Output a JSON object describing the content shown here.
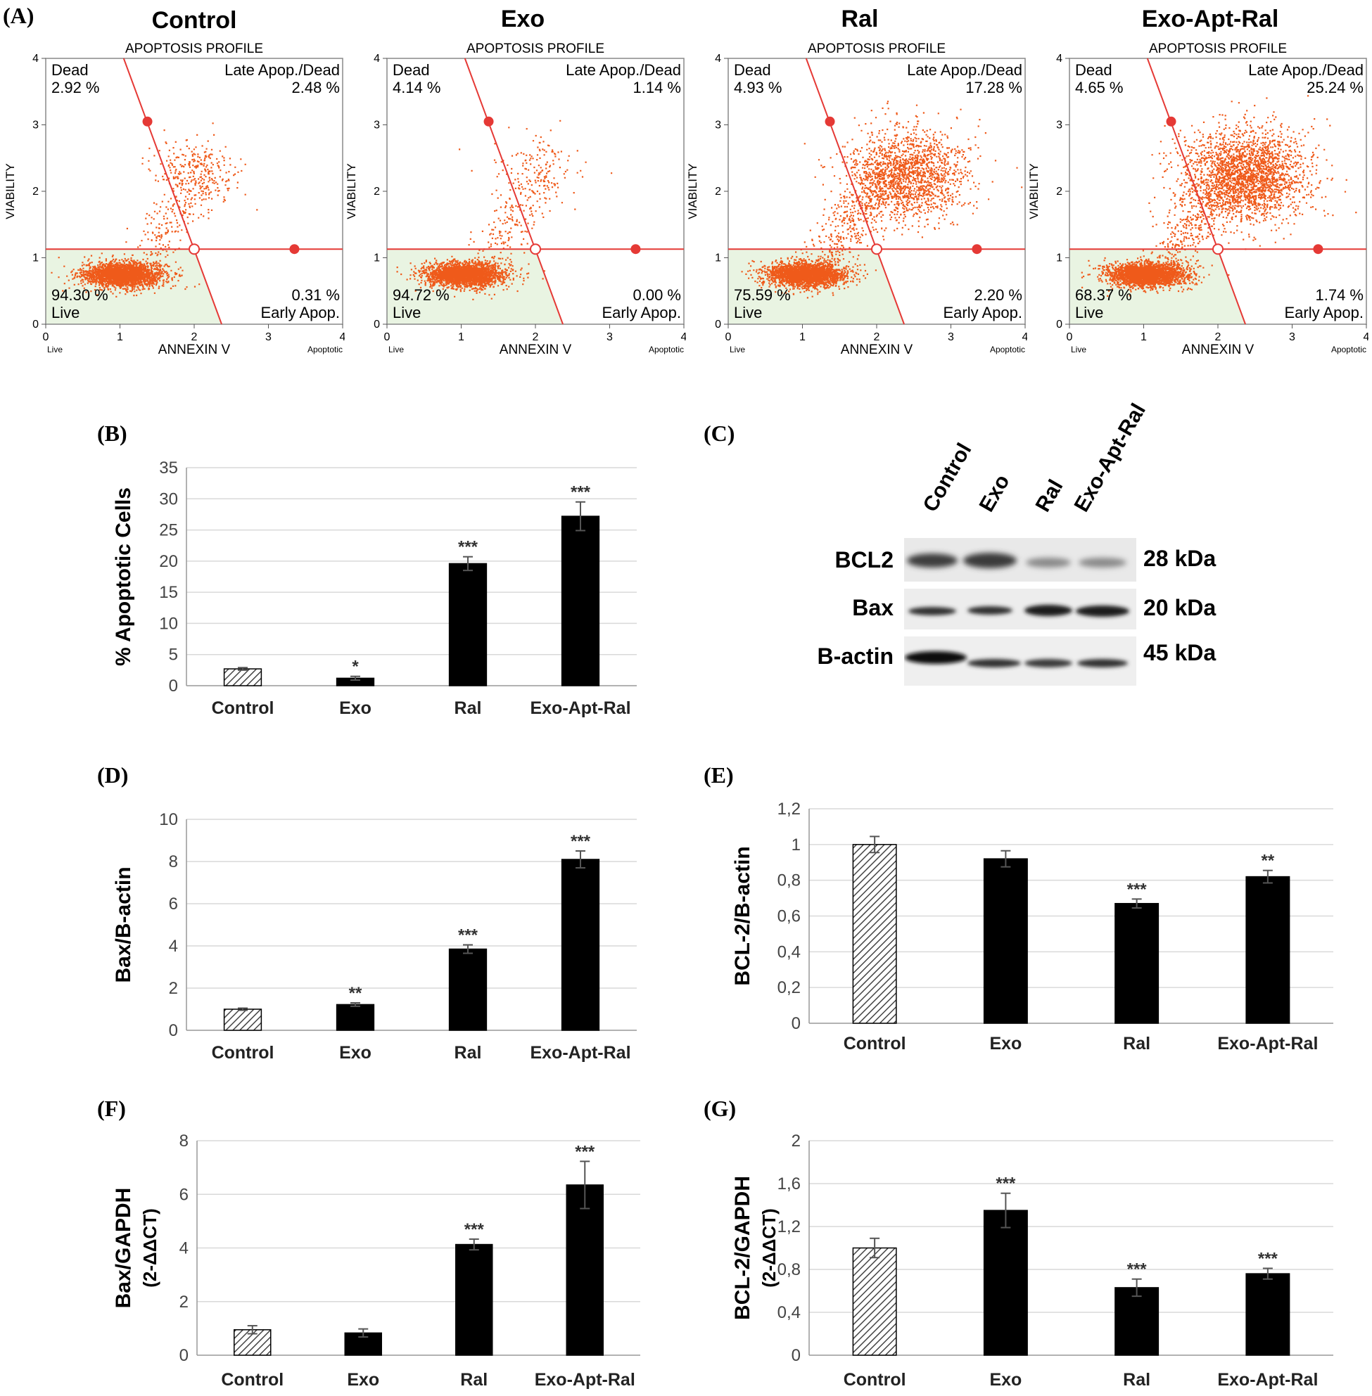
{
  "panel_letters": {
    "A": "(A)",
    "B": "(B)",
    "C": "(C)",
    "D": "(D)",
    "E": "(E)",
    "F": "(F)",
    "G": "(G)"
  },
  "colors": {
    "dots": "#ef5a1a",
    "gate": "#e53935",
    "live_fill": "#e9f4e2",
    "bar_black": "#000000",
    "grid": "#d9d9d9"
  },
  "flow": {
    "subtitle": "APOPTOSIS PROFILE",
    "x_axis_label": "ANNEXIN V",
    "y_axis_label": "VIABILITY",
    "x_low_label": "Live",
    "x_high_label": "Apoptotic",
    "ticks": [
      "0",
      "1",
      "2",
      "3",
      "4"
    ],
    "quad_names": {
      "dead": "Dead",
      "late": "Late Apop./Dead",
      "live": "Live",
      "early": "Early Apop."
    },
    "panels": [
      {
        "title": "Control",
        "dead": "2.92 %",
        "late": "2.48 %",
        "live": "94.30 %",
        "early": "0.31 %"
      },
      {
        "title": "Exo",
        "dead": "4.14 %",
        "late": "1.14 %",
        "live": "94.72 %",
        "early": "0.00 %"
      },
      {
        "title": "Ral",
        "dead": "4.93 %",
        "late": "17.28 %",
        "live": "75.59 %",
        "early": "2.20 %"
      },
      {
        "title": "Exo-Apt-Ral",
        "dead": "4.65 %",
        "late": "25.24 %",
        "live": "68.37 %",
        "early": "1.74 %"
      }
    ]
  },
  "blot": {
    "lanes": [
      "Control",
      "Exo",
      "Ral",
      "Exo-Apt-Ral"
    ],
    "rows": [
      {
        "protein": "BCL2",
        "kda": "28 kDa"
      },
      {
        "protein": "Bax",
        "kda": "20 kDa"
      },
      {
        "protein": "B-actin",
        "kda": "45 kDa"
      }
    ]
  },
  "chart_data": [
    {
      "panel": "B",
      "type": "bar",
      "ylabel": "% Apoptotic Cells",
      "categories": [
        "Control",
        "Exo",
        "Ral",
        "Exo-Apt-Ral"
      ],
      "values": [
        2.7,
        1.2,
        19.6,
        27.2
      ],
      "errors": [
        0.2,
        0.3,
        1.1,
        2.3
      ],
      "sig": [
        "",
        "*",
        "***",
        "***"
      ],
      "ylim": [
        0,
        35
      ],
      "ticks": [
        0,
        5,
        10,
        15,
        20,
        25,
        30,
        35
      ],
      "tick_labels": [
        "0",
        "5",
        "10",
        "15",
        "20",
        "25",
        "30",
        "35"
      ]
    },
    {
      "panel": "D",
      "type": "bar",
      "ylabel": "Bax/B-actin",
      "categories": [
        "Control",
        "Exo",
        "Ral",
        "Exo-Apt-Ral"
      ],
      "values": [
        1.0,
        1.22,
        3.85,
        8.1
      ],
      "errors": [
        0.05,
        0.08,
        0.2,
        0.4
      ],
      "sig": [
        "",
        "**",
        "***",
        "***"
      ],
      "ylim": [
        0,
        10
      ],
      "ticks": [
        0,
        2,
        4,
        6,
        8,
        10
      ],
      "tick_labels": [
        "0",
        "2",
        "4",
        "6",
        "8",
        "10"
      ]
    },
    {
      "panel": "E",
      "type": "bar",
      "ylabel": "BCL-2/B-actin",
      "categories": [
        "Control",
        "Exo",
        "Ral",
        "Exo-Apt-Ral"
      ],
      "values": [
        1.0,
        0.92,
        0.67,
        0.82
      ],
      "errors": [
        0.045,
        0.045,
        0.025,
        0.035
      ],
      "sig": [
        "",
        "",
        "***",
        "**"
      ],
      "ylim": [
        0,
        1.2
      ],
      "ticks": [
        0,
        0.2,
        0.4,
        0.6,
        0.8,
        1,
        1.2
      ],
      "tick_labels": [
        "0",
        "0,2",
        "0,4",
        "0,6",
        "0,8",
        "1",
        "1,2"
      ]
    },
    {
      "panel": "F",
      "type": "bar",
      "ylabel": "Bax/GAPDH",
      "ylabel2": "(2-ΔΔCT)",
      "categories": [
        "Control",
        "Exo",
        "Ral",
        "Exo-Apt-Ral"
      ],
      "values": [
        0.95,
        0.83,
        4.13,
        6.35
      ],
      "errors": [
        0.15,
        0.15,
        0.2,
        0.88
      ],
      "sig": [
        "",
        "",
        "***",
        "***"
      ],
      "ylim": [
        0,
        8
      ],
      "ticks": [
        0,
        2,
        4,
        6,
        8
      ],
      "tick_labels": [
        "0",
        "2",
        "4",
        "6",
        "8"
      ]
    },
    {
      "panel": "G",
      "type": "bar",
      "ylabel": "BCL-2/GAPDH",
      "ylabel2": "(2-ΔΔCT)",
      "categories": [
        "Control",
        "Exo",
        "Ral",
        "Exo-Apt-Ral"
      ],
      "values": [
        1.0,
        1.35,
        0.63,
        0.76
      ],
      "errors": [
        0.09,
        0.16,
        0.08,
        0.05
      ],
      "sig": [
        "",
        "***",
        "***",
        "***"
      ],
      "ylim": [
        0,
        2
      ],
      "ticks": [
        0,
        0.4,
        0.8,
        1.2,
        1.6,
        2
      ],
      "tick_labels": [
        "0",
        "0,4",
        "0,8",
        "1,2",
        "1,6",
        "2"
      ]
    }
  ]
}
